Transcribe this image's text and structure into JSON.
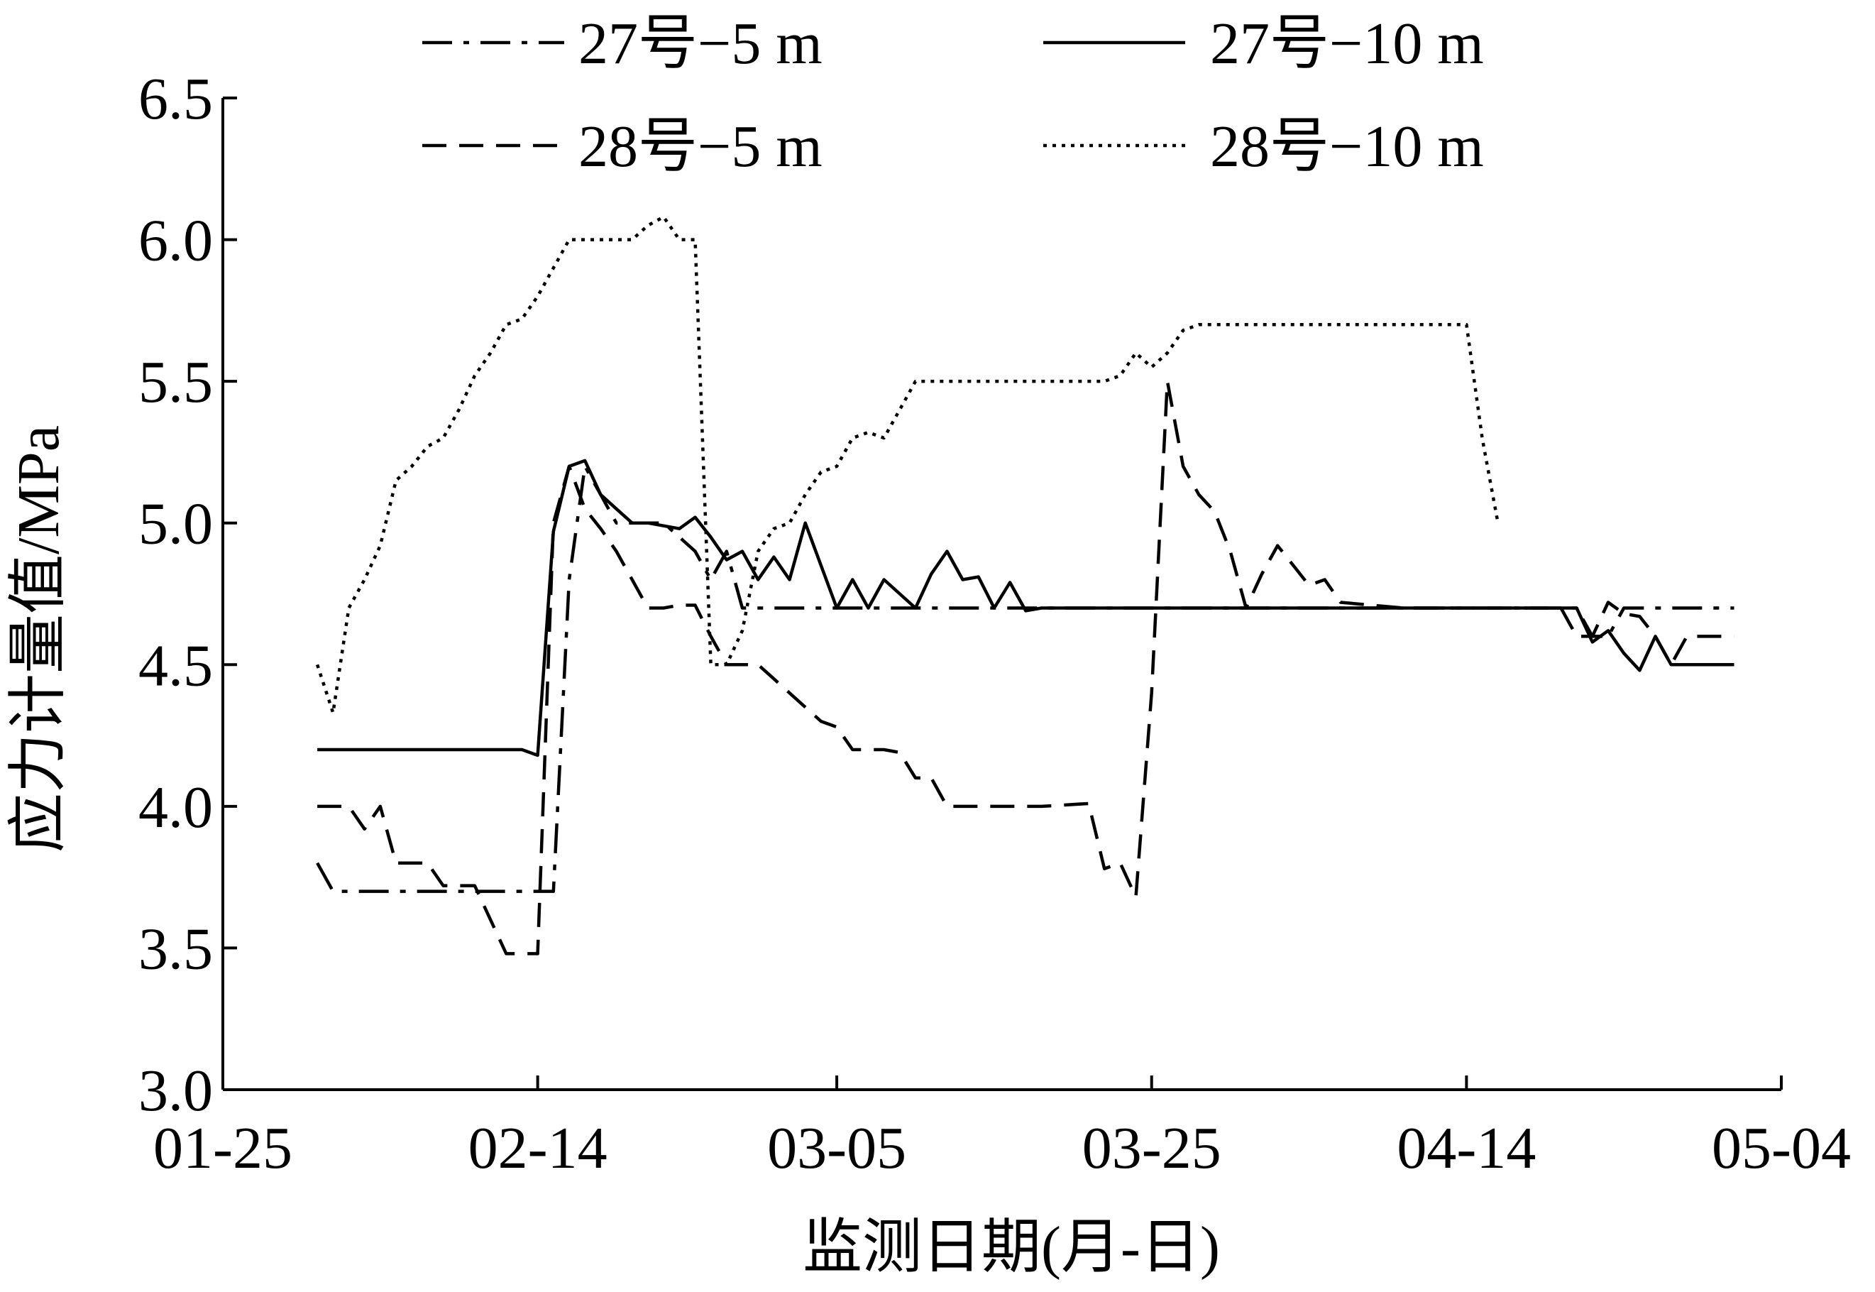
{
  "chart_data": {
    "type": "line",
    "xlabel": "监测日期(月-日)",
    "ylabel": "应力计量值/MPa",
    "x_ticks": [
      "01-25",
      "02-14",
      "03-05",
      "03-25",
      "04-14",
      "05-04"
    ],
    "y_ticks": [
      "3.0",
      "3.5",
      "4.0",
      "4.5",
      "5.0",
      "5.5",
      "6.0",
      "6.5"
    ],
    "xlim": [
      "01-25",
      "05-04"
    ],
    "ylim": [
      3.0,
      6.5
    ],
    "grid": false,
    "legend_position": "top",
    "series": [
      {
        "name": "27号−5 m",
        "line_style": "dash-dot",
        "points": [
          [
            "01-31",
            3.8
          ],
          [
            "02-01",
            3.7
          ],
          [
            "02-05",
            3.7
          ],
          [
            "02-10",
            3.7
          ],
          [
            "02-14",
            3.7
          ],
          [
            "02-15",
            3.7
          ],
          [
            "02-16",
            4.8
          ],
          [
            "02-17",
            5.2
          ],
          [
            "02-18",
            5.1
          ],
          [
            "02-19",
            5.0
          ],
          [
            "02-22",
            5.0
          ],
          [
            "02-24",
            4.9
          ],
          [
            "02-25",
            4.8
          ],
          [
            "02-26",
            4.9
          ],
          [
            "02-27",
            4.7
          ],
          [
            "03-01",
            4.7
          ],
          [
            "03-05",
            4.7
          ],
          [
            "03-25",
            4.7
          ],
          [
            "04-14",
            4.7
          ],
          [
            "04-21",
            4.7
          ],
          [
            "04-22",
            4.6
          ],
          [
            "04-23",
            4.6
          ],
          [
            "04-24",
            4.7
          ],
          [
            "04-28",
            4.7
          ],
          [
            "05-01",
            4.7
          ]
        ]
      },
      {
        "name": "27号−10 m",
        "line_style": "solid",
        "points": [
          [
            "01-31",
            4.2
          ],
          [
            "02-05",
            4.2
          ],
          [
            "02-10",
            4.2
          ],
          [
            "02-13",
            4.2
          ],
          [
            "02-14",
            4.18
          ],
          [
            "02-15",
            4.97
          ],
          [
            "02-16",
            5.2
          ],
          [
            "02-17",
            5.22
          ],
          [
            "02-18",
            5.1
          ],
          [
            "02-19",
            5.05
          ],
          [
            "02-20",
            5.0
          ],
          [
            "02-21",
            5.0
          ],
          [
            "02-23",
            4.98
          ],
          [
            "02-24",
            5.02
          ],
          [
            "02-25",
            4.95
          ],
          [
            "02-26",
            4.87
          ],
          [
            "02-27",
            4.9
          ],
          [
            "02-28",
            4.8
          ],
          [
            "03-01",
            4.88
          ],
          [
            "03-02",
            4.8
          ],
          [
            "03-03",
            5.0
          ],
          [
            "03-04",
            4.85
          ],
          [
            "03-05",
            4.7
          ],
          [
            "03-06",
            4.8
          ],
          [
            "03-07",
            4.7
          ],
          [
            "03-08",
            4.8
          ],
          [
            "03-09",
            4.75
          ],
          [
            "03-10",
            4.7
          ],
          [
            "03-11",
            4.82
          ],
          [
            "03-12",
            4.9
          ],
          [
            "03-13",
            4.8
          ],
          [
            "03-14",
            4.81
          ],
          [
            "03-15",
            4.7
          ],
          [
            "03-16",
            4.79
          ],
          [
            "03-17",
            4.69
          ],
          [
            "03-18",
            4.7
          ],
          [
            "03-25",
            4.7
          ],
          [
            "04-14",
            4.7
          ],
          [
            "04-21",
            4.7
          ],
          [
            "04-22",
            4.58
          ],
          [
            "04-23",
            4.62
          ],
          [
            "04-24",
            4.54
          ],
          [
            "04-25",
            4.48
          ],
          [
            "04-26",
            4.6
          ],
          [
            "04-27",
            4.5
          ],
          [
            "04-28",
            4.5
          ],
          [
            "05-01",
            4.5
          ]
        ]
      },
      {
        "name": "28号−5 m",
        "line_style": "dashed",
        "points": [
          [
            "01-31",
            4.0
          ],
          [
            "02-02",
            4.0
          ],
          [
            "02-03",
            3.92
          ],
          [
            "02-04",
            4.0
          ],
          [
            "02-05",
            3.8
          ],
          [
            "02-07",
            3.8
          ],
          [
            "02-08",
            3.72
          ],
          [
            "02-10",
            3.72
          ],
          [
            "02-12",
            3.48
          ],
          [
            "02-13",
            3.48
          ],
          [
            "02-14",
            3.48
          ],
          [
            "02-15",
            5.0
          ],
          [
            "02-16",
            5.2
          ],
          [
            "02-17",
            5.05
          ],
          [
            "02-18",
            4.98
          ],
          [
            "02-19",
            4.9
          ],
          [
            "02-20",
            4.8
          ],
          [
            "02-21",
            4.7
          ],
          [
            "02-22",
            4.7
          ],
          [
            "02-23",
            4.71
          ],
          [
            "02-24",
            4.71
          ],
          [
            "02-25",
            4.6
          ],
          [
            "02-26",
            4.5
          ],
          [
            "02-28",
            4.5
          ],
          [
            "03-01",
            4.45
          ],
          [
            "03-02",
            4.4
          ],
          [
            "03-03",
            4.35
          ],
          [
            "03-04",
            4.3
          ],
          [
            "03-05",
            4.28
          ],
          [
            "03-06",
            4.2
          ],
          [
            "03-08",
            4.2
          ],
          [
            "03-09",
            4.19
          ],
          [
            "03-10",
            4.1
          ],
          [
            "03-11",
            4.1
          ],
          [
            "03-12",
            4.0
          ],
          [
            "03-15",
            4.0
          ],
          [
            "03-18",
            4.0
          ],
          [
            "03-21",
            4.01
          ],
          [
            "03-22",
            3.78
          ],
          [
            "03-23",
            3.8
          ],
          [
            "03-24",
            3.68
          ],
          [
            "03-25",
            4.4
          ],
          [
            "03-26",
            5.5
          ],
          [
            "03-27",
            5.2
          ],
          [
            "03-28",
            5.1
          ],
          [
            "03-29",
            5.04
          ],
          [
            "03-30",
            4.9
          ],
          [
            "03-31",
            4.7
          ],
          [
            "04-01",
            4.82
          ],
          [
            "04-02",
            4.92
          ],
          [
            "04-03",
            4.85
          ],
          [
            "04-04",
            4.78
          ],
          [
            "04-05",
            4.8
          ],
          [
            "04-06",
            4.72
          ],
          [
            "04-10",
            4.7
          ],
          [
            "04-14",
            4.7
          ],
          [
            "04-20",
            4.7
          ],
          [
            "04-21",
            4.6
          ],
          [
            "04-22",
            4.6
          ],
          [
            "04-23",
            4.72
          ],
          [
            "04-24",
            4.68
          ],
          [
            "04-25",
            4.67
          ],
          [
            "04-26",
            4.6
          ],
          [
            "04-27",
            4.5
          ],
          [
            "04-28",
            4.6
          ],
          [
            "05-01",
            4.6
          ]
        ]
      },
      {
        "name": "28号−10 m",
        "line_style": "dotted",
        "points": [
          [
            "01-31",
            4.5
          ],
          [
            "02-01",
            4.33
          ],
          [
            "02-02",
            4.7
          ],
          [
            "02-03",
            4.8
          ],
          [
            "02-04",
            4.92
          ],
          [
            "02-05",
            5.15
          ],
          [
            "02-06",
            5.2
          ],
          [
            "02-07",
            5.27
          ],
          [
            "02-08",
            5.3
          ],
          [
            "02-09",
            5.4
          ],
          [
            "02-10",
            5.52
          ],
          [
            "02-11",
            5.6
          ],
          [
            "02-12",
            5.7
          ],
          [
            "02-13",
            5.72
          ],
          [
            "02-14",
            5.8
          ],
          [
            "02-15",
            5.9
          ],
          [
            "02-16",
            6.0
          ],
          [
            "02-18",
            6.0
          ],
          [
            "02-20",
            6.0
          ],
          [
            "02-21",
            6.05
          ],
          [
            "02-22",
            6.08
          ],
          [
            "02-23",
            6.0
          ],
          [
            "02-24",
            6.0
          ],
          [
            "02-25",
            4.5
          ],
          [
            "02-26",
            4.5
          ],
          [
            "02-27",
            4.62
          ],
          [
            "02-28",
            4.9
          ],
          [
            "03-01",
            4.98
          ],
          [
            "03-02",
            5.0
          ],
          [
            "03-03",
            5.1
          ],
          [
            "03-04",
            5.18
          ],
          [
            "03-05",
            5.2
          ],
          [
            "03-06",
            5.3
          ],
          [
            "03-07",
            5.32
          ],
          [
            "03-08",
            5.3
          ],
          [
            "03-09",
            5.4
          ],
          [
            "03-10",
            5.5
          ],
          [
            "03-12",
            5.5
          ],
          [
            "03-14",
            5.5
          ],
          [
            "03-16",
            5.5
          ],
          [
            "03-20",
            5.5
          ],
          [
            "03-22",
            5.5
          ],
          [
            "03-23",
            5.52
          ],
          [
            "03-24",
            5.6
          ],
          [
            "03-25",
            5.55
          ],
          [
            "03-26",
            5.6
          ],
          [
            "03-27",
            5.68
          ],
          [
            "03-28",
            5.7
          ],
          [
            "04-01",
            5.7
          ],
          [
            "04-05",
            5.7
          ],
          [
            "04-10",
            5.7
          ],
          [
            "04-13",
            5.7
          ],
          [
            "04-14",
            5.7
          ],
          [
            "04-15",
            5.3
          ],
          [
            "04-16",
            5.0
          ]
        ]
      }
    ]
  }
}
